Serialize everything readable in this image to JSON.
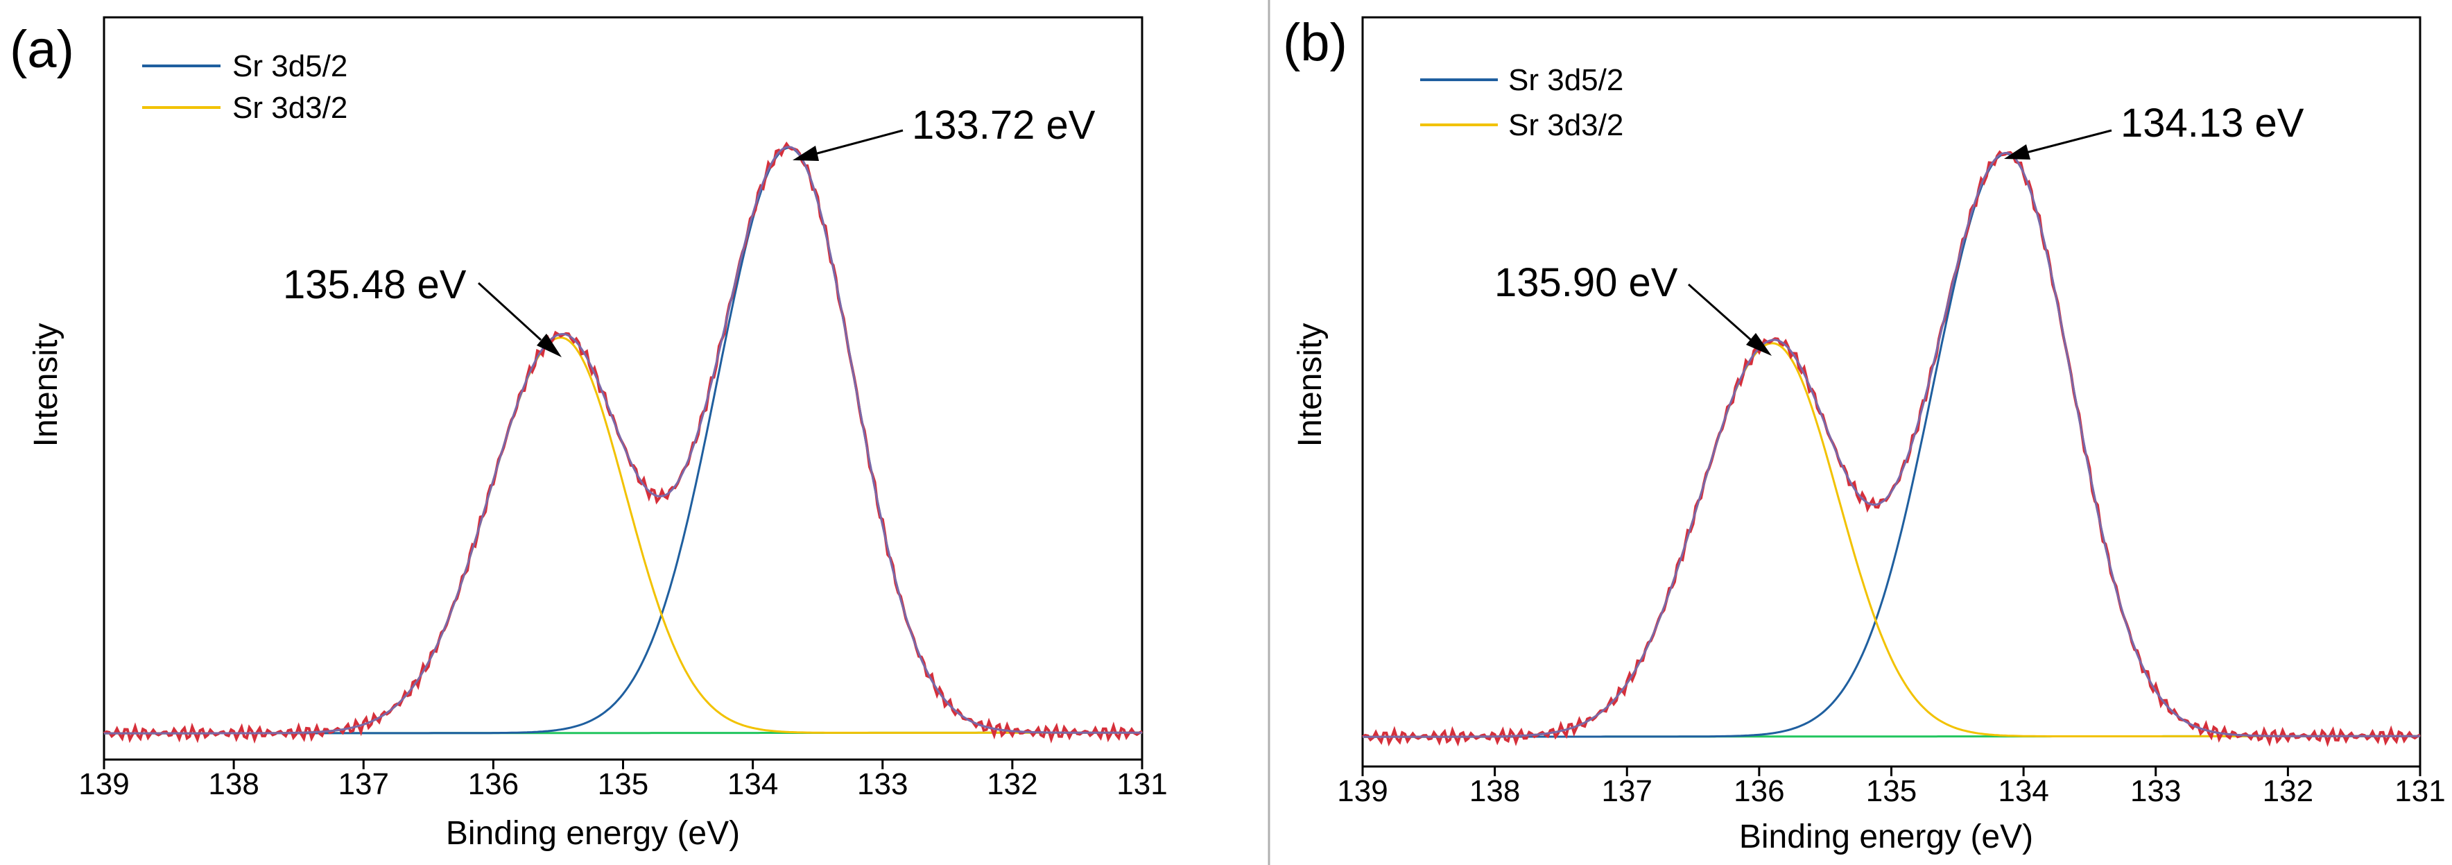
{
  "chart_data": [
    {
      "type": "line",
      "panel_label": "(a)",
      "xlabel": "Binding energy (eV)",
      "ylabel": "Intensity",
      "xlim": [
        139,
        131
      ],
      "ylim": [
        0,
        1
      ],
      "x_ticks": [
        "139",
        "138",
        "137",
        "136",
        "135",
        "134",
        "133",
        "132",
        "131"
      ],
      "legend_position": "top-left",
      "legend": [
        {
          "name": "Sr 3d5/2",
          "color": "#1f5f9f"
        },
        {
          "name": "Sr 3d3/2",
          "color": "#f2c200"
        }
      ],
      "peaks": [
        {
          "name": "Sr 3d5/2",
          "center": 133.72,
          "height": 0.888,
          "sigma_left": 0.55,
          "sigma_right": 0.5,
          "color": "#1f5f9f"
        },
        {
          "name": "Sr 3d3/2",
          "center": 135.48,
          "height": 0.6,
          "sigma_left": 0.55,
          "sigma_right": 0.5,
          "color": "#f2c200"
        }
      ],
      "background": {
        "start": 0.003,
        "end": 0.004,
        "color": "#22c55e"
      },
      "envelope_colors": {
        "raw": "#d62f3a",
        "fit": "#7a68a8"
      },
      "annotations": [
        {
          "text": "133.72 eV",
          "x": 133.72
        },
        {
          "text": "135.48 eV",
          "x": 135.48
        }
      ]
    },
    {
      "type": "line",
      "panel_label": "(b)",
      "xlabel": "Binding energy (eV)",
      "ylabel": "Intensity",
      "xlim": [
        139,
        131
      ],
      "ylim": [
        0,
        1
      ],
      "x_ticks": [
        "139",
        "138",
        "137",
        "136",
        "135",
        "134",
        "133",
        "132",
        "131"
      ],
      "legend_position": "top-left",
      "legend": [
        {
          "name": "Sr 3d5/2",
          "color": "#1f5f9f"
        },
        {
          "name": "Sr 3d3/2",
          "color": "#f2c200"
        }
      ],
      "peaks": [
        {
          "name": "Sr 3d5/2",
          "center": 134.13,
          "height": 0.889,
          "sigma_left": 0.55,
          "sigma_right": 0.5,
          "color": "#1f5f9f"
        },
        {
          "name": "Sr 3d3/2",
          "center": 135.9,
          "height": 0.6,
          "sigma_left": 0.55,
          "sigma_right": 0.5,
          "color": "#f2c200"
        }
      ],
      "background": {
        "start": 0.003,
        "end": 0.004,
        "color": "#22c55e"
      },
      "envelope_colors": {
        "raw": "#d62f3a",
        "fit": "#7a68a8"
      },
      "annotations": [
        {
          "text": "134.13 eV",
          "x": 134.13
        },
        {
          "text": "135.90 eV",
          "x": 135.9
        }
      ]
    }
  ]
}
